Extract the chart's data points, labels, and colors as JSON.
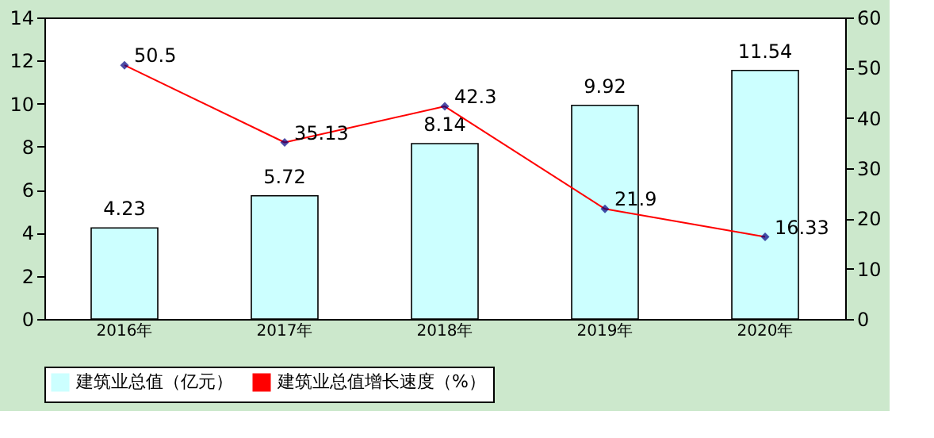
{
  "chart_data": {
    "type": "bar",
    "categories": [
      "2016年",
      "2017年",
      "2018年",
      "2019年",
      "2020年"
    ],
    "series": [
      {
        "name": "建筑业总值（亿元）",
        "color": "#ccffff",
        "values": [
          4.23,
          5.72,
          8.14,
          9.92,
          11.54
        ]
      },
      {
        "name": "建筑业总值增长速度（%）",
        "type": "line",
        "axis": "y2",
        "color": "#ff0000",
        "values": [
          50.5,
          35.13,
          42.3,
          21.9,
          16.33
        ]
      }
    ],
    "ylim": [
      0,
      14
    ],
    "yticks": [
      0,
      2,
      4,
      6,
      8,
      10,
      12,
      14
    ],
    "y2lim": [
      0,
      60
    ],
    "y2ticks": [
      0,
      10,
      20,
      30,
      40,
      50,
      60
    ],
    "data_labels": true,
    "legend": "bottom",
    "marker": "diamond"
  }
}
